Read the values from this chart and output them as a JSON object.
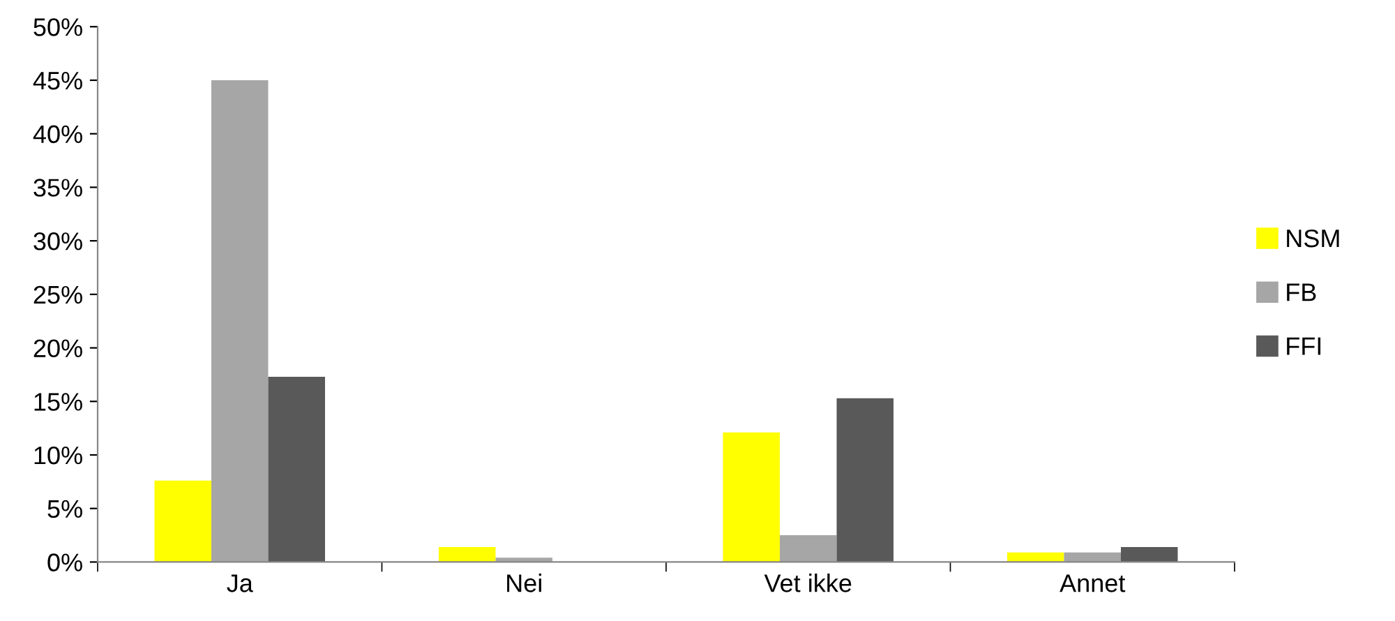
{
  "chart_data": {
    "type": "bar",
    "categories": [
      "Ja",
      "Nei",
      "Vet ikke",
      "Annet"
    ],
    "series": [
      {
        "name": "NSM",
        "color": "#ffff00",
        "values": [
          7.6,
          1.4,
          12.1,
          0.9
        ]
      },
      {
        "name": "FB",
        "color": "#a6a6a6",
        "values": [
          45,
          0.4,
          2.5,
          0.9
        ]
      },
      {
        "name": "FFI",
        "color": "#595959",
        "values": [
          17.3,
          0,
          15.3,
          1.4
        ]
      }
    ],
    "ylim": [
      0,
      50
    ],
    "yticks": [
      {
        "value": 0,
        "label": "0%"
      },
      {
        "value": 5,
        "label": "5%"
      },
      {
        "value": 10,
        "label": "10%"
      },
      {
        "value": 15,
        "label": "15%"
      },
      {
        "value": 20,
        "label": "20%"
      },
      {
        "value": 25,
        "label": "25%"
      },
      {
        "value": 30,
        "label": "30%"
      },
      {
        "value": 35,
        "label": "35%"
      },
      {
        "value": 40,
        "label": "40%"
      },
      {
        "value": 45,
        "label": "45%"
      },
      {
        "value": 50,
        "label": "50%"
      }
    ],
    "grid": false,
    "legend": "right"
  }
}
